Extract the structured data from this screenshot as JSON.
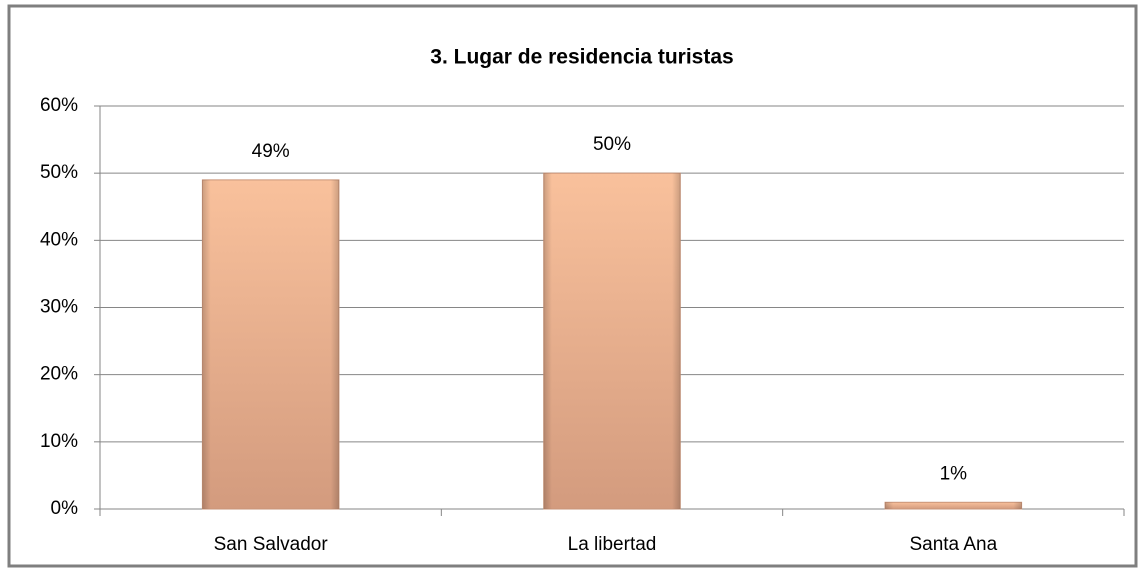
{
  "chart_data": {
    "type": "bar",
    "title": "3. Lugar de residencia turistas",
    "categories": [
      "San Salvador",
      "La libertad",
      "Santa Ana"
    ],
    "values": [
      49,
      50,
      1
    ],
    "value_labels": [
      "49%",
      "50%",
      "1%"
    ],
    "color": "#f9c19c",
    "ylim": [
      0,
      60
    ],
    "yticks": [
      {
        "value": 0,
        "label": "0%"
      },
      {
        "value": 10,
        "label": "10%"
      },
      {
        "value": 20,
        "label": "20%"
      },
      {
        "value": 30,
        "label": "30%"
      },
      {
        "value": 40,
        "label": "40%"
      },
      {
        "value": 50,
        "label": "50%"
      },
      {
        "value": 60,
        "label": "60%"
      }
    ],
    "grid": true
  }
}
